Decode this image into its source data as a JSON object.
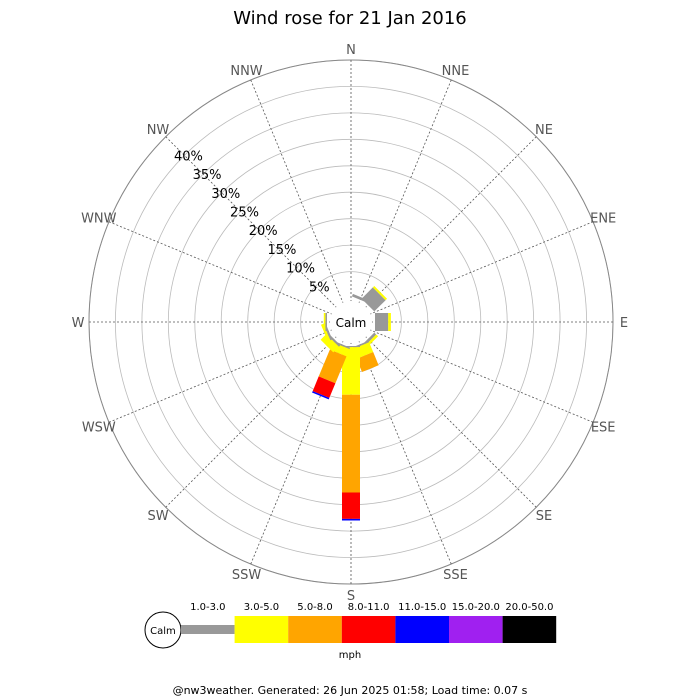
{
  "chart_data": {
    "type": "wind-rose",
    "title": "Wind rose for 21 Jan 2016",
    "directions": [
      "N",
      "NNE",
      "NE",
      "ENE",
      "E",
      "ESE",
      "SE",
      "SSE",
      "S",
      "SSW",
      "SW",
      "WSW",
      "W",
      "WNW",
      "NW",
      "NNW"
    ],
    "ring_labels": [
      "5%",
      "10%",
      "15%",
      "20%",
      "25%",
      "30%",
      "35%",
      "40%"
    ],
    "rmax": 45,
    "center_label": "Calm",
    "units": "mph",
    "speed_bins": [
      {
        "label": "1.0-3.0",
        "color": "#999999"
      },
      {
        "label": "3.0-5.0",
        "color": "#ffff00"
      },
      {
        "label": "5.0-8.0",
        "color": "#ffa500"
      },
      {
        "label": "8.0-11.0",
        "color": "#ff0000"
      },
      {
        "label": "11.0-15.0",
        "color": "#0000ff"
      },
      {
        "label": "15.0-20.0",
        "color": "#a020f0"
      },
      {
        "label": "20.0-50.0",
        "color": "#000000"
      }
    ],
    "series": [
      {
        "direction": "NNE",
        "values": [
          0.5,
          0.0,
          0,
          0,
          0,
          0,
          0
        ]
      },
      {
        "direction": "NE",
        "values": [
          3.0,
          0.4,
          0,
          0,
          0,
          0,
          0
        ]
      },
      {
        "direction": "E",
        "values": [
          2.5,
          0.5,
          0,
          0,
          0,
          0,
          0
        ]
      },
      {
        "direction": "SE",
        "values": [
          0.5,
          0.5,
          0,
          0,
          0,
          0,
          0
        ]
      },
      {
        "direction": "SSE",
        "values": [
          0.3,
          2.0,
          2.7,
          0,
          0,
          0,
          0
        ]
      },
      {
        "direction": "S",
        "values": [
          0.2,
          9.0,
          18.5,
          5.0,
          0.3,
          0,
          0
        ]
      },
      {
        "direction": "SSW",
        "values": [
          0.3,
          1.5,
          5.5,
          3.0,
          0.3,
          0,
          0
        ]
      },
      {
        "direction": "SW",
        "values": [
          0.4,
          1.5,
          0,
          0,
          0,
          0,
          0
        ]
      },
      {
        "direction": "WSW",
        "values": [
          0.4,
          0.5,
          0,
          0,
          0,
          0,
          0
        ]
      },
      {
        "direction": "W",
        "values": [
          0.3,
          0.3,
          0,
          0,
          0,
          0,
          0
        ]
      }
    ]
  },
  "footer": "@nw3weather. Generated: 26 Jun 2025 01:58; Load time: 0.07 s"
}
